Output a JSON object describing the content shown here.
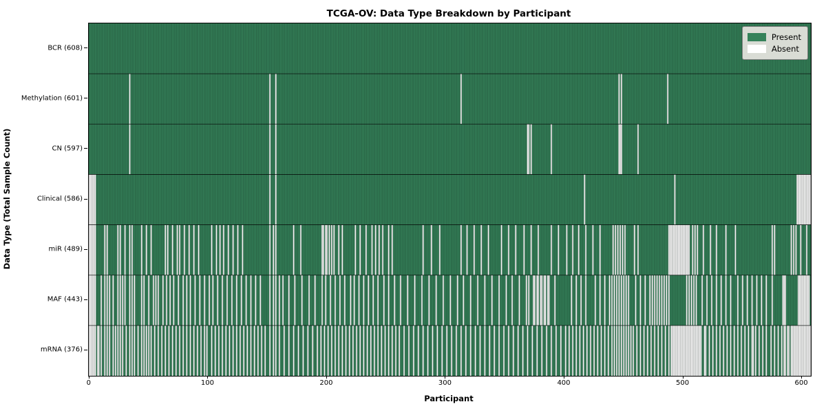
{
  "title": "TCGA-OV: Data Type Breakdown by Participant",
  "axes": {
    "x_label": "Participant",
    "y_label": "Data Type (Total Sample Count)",
    "x_ticks": [
      0,
      100,
      200,
      300,
      400,
      500,
      600
    ]
  },
  "legend": {
    "present_label": "Present",
    "absent_label": "Absent"
  },
  "colors": {
    "present": "#35825a",
    "present_edge": "rgba(0,0,0,0.38)",
    "absent": "#fcfcfc",
    "absent_edge": "rgba(130,130,130,0.85)",
    "row_separator": "rgba(0,0,0,0.85)",
    "legend_bg": "#d9dcd5",
    "legend_border": "#7f7f7f"
  },
  "chart_data": {
    "type": "heatmap",
    "title": "TCGA-OV: Data Type Breakdown by Participant",
    "xlabel": "Participant",
    "ylabel": "Data Type (Total Sample Count)",
    "x_ticks": [
      0,
      100,
      200,
      300,
      400,
      500,
      600
    ],
    "xlim": [
      0,
      608
    ],
    "n_participants": 608,
    "legend_position": "upper right",
    "legend_entries": [
      "Present",
      "Absent"
    ],
    "grid": false,
    "rows": [
      {
        "label": "BCR (608)",
        "name": "BCR",
        "total": 608,
        "absent": []
      },
      {
        "label": "Methylation (601)",
        "name": "Methylation",
        "total": 601,
        "absent": [
          34,
          152,
          157,
          313,
          446,
          448,
          487
        ]
      },
      {
        "label": "CN (597)",
        "name": "CN",
        "total": 597,
        "absent": [
          34,
          152,
          157,
          369,
          370,
          372,
          389,
          446,
          447,
          448,
          462
        ]
      },
      {
        "label": "Clinical (586)",
        "name": "Clinical",
        "total": 586,
        "absent": [
          0,
          1,
          2,
          3,
          4,
          5,
          152,
          157,
          417,
          493,
          596,
          597,
          598,
          599,
          600,
          601,
          602,
          603,
          604,
          605,
          606,
          607
        ]
      },
      {
        "label": "miR (489)",
        "name": "miR",
        "total": 489,
        "absent": [
          0,
          1,
          2,
          3,
          4,
          5,
          13,
          15,
          24,
          26,
          30,
          34,
          36,
          44,
          48,
          52,
          64,
          66,
          70,
          74,
          76,
          80,
          84,
          88,
          92,
          103,
          107,
          110,
          113,
          117,
          121,
          125,
          129,
          152,
          155,
          157,
          172,
          178,
          196,
          197,
          199,
          200,
          202,
          204,
          206,
          210,
          213,
          224,
          228,
          233,
          238,
          241,
          244,
          247,
          252,
          255,
          281,
          288,
          295,
          313,
          318,
          324,
          330,
          336,
          347,
          353,
          359,
          366,
          372,
          378,
          389,
          395,
          402,
          407,
          412,
          418,
          424,
          430,
          441,
          443,
          445,
          447,
          449,
          451,
          459,
          462,
          488,
          489,
          490,
          491,
          492,
          493,
          494,
          495,
          496,
          497,
          498,
          499,
          500,
          501,
          502,
          503,
          504,
          505,
          508,
          510,
          512,
          517,
          523,
          528,
          536,
          544,
          575,
          577,
          591,
          593,
          595,
          599,
          604
        ]
      },
      {
        "label": "MAF (443)",
        "name": "MAF",
        "total": 443,
        "absent": [
          0,
          1,
          2,
          3,
          4,
          5,
          10,
          13,
          15,
          17,
          20,
          24,
          26,
          28,
          30,
          34,
          36,
          38,
          44,
          46,
          50,
          54,
          56,
          58,
          62,
          65,
          68,
          71,
          75,
          79,
          82,
          85,
          89,
          93,
          97,
          101,
          104,
          108,
          112,
          116,
          120,
          124,
          128,
          132,
          136,
          140,
          144,
          152,
          155,
          157,
          160,
          163,
          168,
          173,
          179,
          185,
          190,
          196,
          199,
          203,
          207,
          211,
          215,
          220,
          223,
          227,
          231,
          235,
          239,
          243,
          248,
          252,
          257,
          262,
          268,
          274,
          280,
          286,
          292,
          298,
          304,
          310,
          315,
          321,
          327,
          333,
          339,
          345,
          351,
          356,
          362,
          368,
          370,
          374,
          375,
          377,
          378,
          380,
          381,
          383,
          384,
          386,
          387,
          392,
          406,
          410,
          414,
          418,
          426,
          430,
          434,
          438,
          440,
          442,
          444,
          446,
          448,
          450,
          452,
          454,
          460,
          464,
          468,
          472,
          474,
          476,
          478,
          480,
          482,
          484,
          486,
          488,
          503,
          505,
          507,
          509,
          511,
          516,
          520,
          524,
          528,
          532,
          536,
          540,
          546,
          550,
          554,
          558,
          562,
          566,
          570,
          575,
          584,
          585,
          586,
          597,
          598,
          599,
          600,
          601,
          602,
          603,
          604,
          605,
          606
        ]
      },
      {
        "label": "mRNA (376)",
        "name": "mRNA",
        "total": 376,
        "absent": [
          0,
          1,
          2,
          3,
          4,
          5,
          7,
          8,
          10,
          13,
          15,
          17,
          20,
          22,
          24,
          26,
          28,
          31,
          34,
          36,
          38,
          41,
          44,
          46,
          48,
          50,
          52,
          55,
          58,
          61,
          64,
          67,
          70,
          73,
          76,
          79,
          82,
          85,
          88,
          91,
          94,
          97,
          99,
          103,
          106,
          109,
          112,
          115,
          118,
          121,
          124,
          127,
          130,
          133,
          136,
          139,
          142,
          145,
          148,
          152,
          155,
          157,
          160,
          164,
          168,
          172,
          176,
          180,
          184,
          188,
          192,
          195,
          198,
          201,
          204,
          207,
          210,
          213,
          216,
          219,
          222,
          225,
          228,
          231,
          234,
          237,
          240,
          243,
          246,
          249,
          252,
          255,
          258,
          261,
          265,
          269,
          273,
          277,
          281,
          285,
          289,
          293,
          297,
          301,
          305,
          309,
          313,
          317,
          321,
          325,
          329,
          333,
          337,
          341,
          345,
          349,
          353,
          357,
          361,
          365,
          369,
          373,
          377,
          381,
          385,
          389,
          393,
          397,
          401,
          404,
          407,
          410,
          413,
          416,
          419,
          422,
          425,
          428,
          431,
          434,
          437,
          440,
          442,
          444,
          446,
          448,
          450,
          452,
          454,
          456,
          458,
          461,
          464,
          467,
          470,
          473,
          476,
          479,
          482,
          485,
          488,
          490,
          491,
          492,
          493,
          494,
          495,
          496,
          497,
          498,
          499,
          500,
          501,
          502,
          503,
          504,
          505,
          506,
          507,
          508,
          509,
          510,
          511,
          512,
          513,
          514,
          515,
          518,
          519,
          522,
          525,
          528,
          531,
          534,
          537,
          540,
          543,
          546,
          549,
          552,
          555,
          558,
          559,
          561,
          564,
          567,
          570,
          574,
          577,
          580,
          583,
          585,
          586,
          588,
          589,
          591,
          592,
          593,
          594,
          595,
          596,
          597,
          598,
          599,
          600,
          601,
          602,
          603,
          604,
          605,
          606,
          607
        ]
      }
    ]
  }
}
